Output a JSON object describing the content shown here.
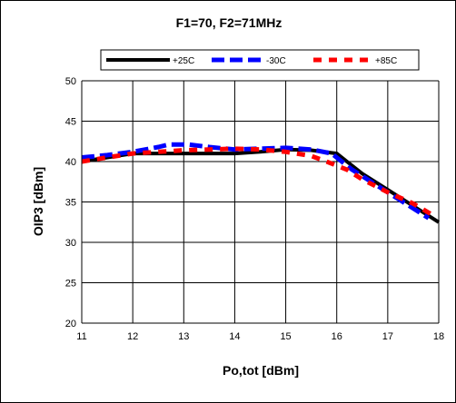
{
  "chart_data": {
    "type": "line",
    "title": "F1=70, F2=71MHz",
    "xlabel": "Po,tot [dBm]",
    "ylabel": "OIP3 [dBm]",
    "xlim": [
      11,
      18
    ],
    "ylim": [
      20,
      50
    ],
    "xticks": [
      "11",
      "12",
      "13",
      "14",
      "15",
      "16",
      "17",
      "18"
    ],
    "yticks": [
      "20",
      "25",
      "30",
      "35",
      "40",
      "45",
      "50"
    ],
    "grid": true,
    "legend_position": "top",
    "series": [
      {
        "name": "+25C",
        "color": "#000000",
        "style": "solid",
        "x": [
          11.0,
          11.5,
          12.0,
          12.5,
          13.0,
          13.5,
          14.0,
          14.5,
          15.0,
          15.5,
          16.0,
          16.5,
          17.0,
          17.5,
          18.0
        ],
        "y": [
          40.0,
          40.5,
          41.0,
          41.0,
          41.0,
          41.0,
          41.0,
          41.2,
          41.5,
          41.4,
          41.0,
          38.5,
          36.5,
          34.5,
          32.5
        ]
      },
      {
        "name": "-30C",
        "color": "#0000ff",
        "style": "dashed",
        "x": [
          11.0,
          11.5,
          12.0,
          12.5,
          12.7,
          13.1,
          13.5,
          14.0,
          14.5,
          15.0,
          15.5,
          15.9,
          16.3,
          16.8,
          17.3,
          17.8
        ],
        "y": [
          40.5,
          40.8,
          41.2,
          41.8,
          42.1,
          42.1,
          41.8,
          41.5,
          41.6,
          41.7,
          41.5,
          41.0,
          39.0,
          37.0,
          35.0,
          33.0
        ]
      },
      {
        "name": "+85C",
        "color": "#ff0000",
        "style": "dashed",
        "x": [
          11.0,
          11.5,
          12.0,
          12.5,
          13.0,
          13.5,
          14.0,
          14.5,
          15.0,
          15.5,
          15.8,
          16.2,
          16.5,
          17.0,
          17.5,
          17.9
        ],
        "y": [
          40.0,
          40.5,
          41.0,
          41.2,
          41.4,
          41.5,
          41.6,
          41.5,
          41.2,
          40.7,
          40.0,
          39.0,
          37.8,
          36.2,
          34.8,
          33.3
        ]
      }
    ]
  }
}
